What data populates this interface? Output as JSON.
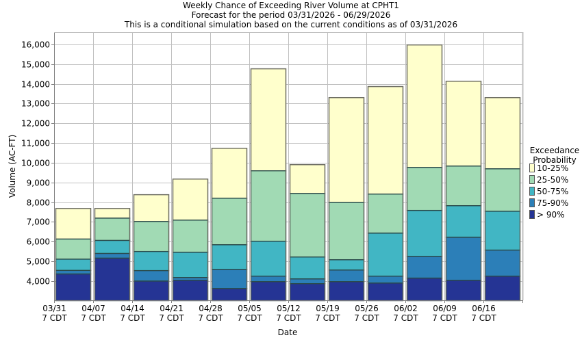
{
  "chart_data": {
    "type": "bar",
    "stacked": true,
    "title": "Weekly Chance of Exceeding River Volume at CPHT1",
    "subtitle": [
      "Forecast for the period 03/31/2026 - 06/29/2026",
      "This is a conditional simulation based on the current conditions as of 03/31/2026"
    ],
    "xlabel": "Date",
    "ylabel": "Volume (AC-FT)",
    "ylim": [
      3030,
      16620
    ],
    "yticks": [
      4000,
      5000,
      6000,
      7000,
      8000,
      9000,
      10000,
      11000,
      12000,
      13000,
      14000,
      15000,
      16000
    ],
    "ytick_labels": [
      "4,000",
      "5,000",
      "6,000",
      "7,000",
      "8,000",
      "9,000",
      "10,000",
      "11,000",
      "12,000",
      "13,000",
      "14,000",
      "15,000",
      "16,000"
    ],
    "grid": true,
    "categories": [
      {
        "date": "03/31",
        "time": "7 CDT"
      },
      {
        "date": "04/07",
        "time": "7 CDT"
      },
      {
        "date": "04/14",
        "time": "7 CDT"
      },
      {
        "date": "04/21",
        "time": "7 CDT"
      },
      {
        "date": "04/28",
        "time": "7 CDT"
      },
      {
        "date": "05/05",
        "time": "7 CDT"
      },
      {
        "date": "05/12",
        "time": "7 CDT"
      },
      {
        "date": "05/19",
        "time": "7 CDT"
      },
      {
        "date": "05/26",
        "time": "7 CDT"
      },
      {
        "date": "06/02",
        "time": "7 CDT"
      },
      {
        "date": "06/09",
        "time": "7 CDT"
      },
      {
        "date": "06/16",
        "time": "7 CDT"
      }
    ],
    "legend": {
      "title": [
        "Exceedance",
        "Probability"
      ],
      "placement": "right"
    },
    "series": [
      {
        "name": "10-25%",
        "color": "#ffffcc",
        "values": [
          7700,
          7700,
          8400,
          9190,
          10750,
          14780,
          9920,
          13320,
          13880,
          15990,
          14150,
          13320
        ]
      },
      {
        "name": "25-50%",
        "color": "#a1dab4",
        "values": [
          6150,
          7210,
          7040,
          7110,
          8220,
          9610,
          8460,
          8010,
          8430,
          9780,
          9850,
          9710
        ]
      },
      {
        "name": "50-75%",
        "color": "#41b6c4",
        "values": [
          5130,
          6080,
          5520,
          5480,
          5860,
          6040,
          5240,
          5100,
          6450,
          7600,
          7840,
          7560
        ]
      },
      {
        "name": "75-90%",
        "color": "#2c7fb8",
        "values": [
          4560,
          5420,
          4550,
          4200,
          4610,
          4270,
          4130,
          4580,
          4270,
          5270,
          6240,
          5590
        ]
      },
      {
        "name": "> 90%",
        "color": "#253494",
        "values": [
          4380,
          5180,
          4020,
          4060,
          3640,
          3990,
          3890,
          3990,
          3920,
          4170,
          4060,
          4270
        ]
      }
    ]
  }
}
